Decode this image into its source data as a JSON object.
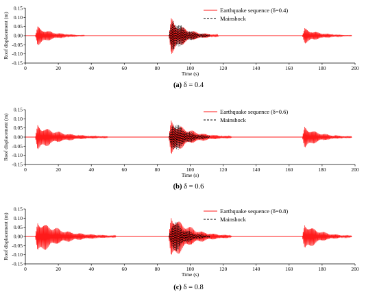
{
  "colors": {
    "sequence": "#ff1a1a",
    "mainshock": "#000000",
    "axis": "#000000"
  },
  "chart_data": [
    {
      "type": "line",
      "caption": {
        "label": "(a)",
        "text": " δ = 0.4"
      },
      "xlabel": "Time (s)",
      "ylabel": "Roof displacement (m)",
      "xlim": [
        0,
        200
      ],
      "ylim": [
        -0.15,
        0.15
      ],
      "x_ticks": [
        "0",
        "20",
        "40",
        "60",
        "80",
        "100",
        "120",
        "140",
        "160",
        "180",
        "200"
      ],
      "y_ticks": [
        "-0.15",
        "-0.10",
        "-0.05",
        "0.00",
        "0.05",
        "0.10",
        "0.15"
      ],
      "legend_position": "top-right",
      "series": [
        {
          "name": "Earthquake sequence (δ=0.4)",
          "style": "solid",
          "color": "#ff1a1a",
          "bursts": [
            {
              "start": 6,
              "end": 36,
              "peak": 0.055
            },
            {
              "start": 87,
              "end": 117,
              "peak": 0.105
            },
            {
              "start": 168,
              "end": 198,
              "peak": 0.045
            }
          ]
        },
        {
          "name": "Mainshock",
          "style": "dashed",
          "color": "#000000",
          "bursts": [
            {
              "start": 87,
              "end": 112,
              "peak": 0.11
            }
          ]
        }
      ]
    },
    {
      "type": "line",
      "caption": {
        "label": "(b)",
        "text": " δ = 0.6"
      },
      "xlabel": "Time (s)",
      "ylabel": "Roof displacement (m)",
      "xlim": [
        0,
        200
      ],
      "ylim": [
        -0.15,
        0.15
      ],
      "x_ticks": [
        "0",
        "20",
        "40",
        "60",
        "80",
        "100",
        "120",
        "140",
        "160",
        "180",
        "200"
      ],
      "y_ticks": [
        "-0.15",
        "-0.10",
        "-0.05",
        "0.00",
        "0.05",
        "0.10",
        "0.15"
      ],
      "legend_position": "top-right",
      "series": [
        {
          "name": "Earthquake sequence (δ=0.6)",
          "style": "solid",
          "color": "#ff1a1a",
          "bursts": [
            {
              "start": 6,
              "end": 50,
              "peak": 0.075
            },
            {
              "start": 87,
              "end": 125,
              "peak": 0.105
            },
            {
              "start": 168,
              "end": 198,
              "peak": 0.065
            }
          ]
        },
        {
          "name": "Mainshock",
          "style": "dashed",
          "color": "#000000",
          "bursts": [
            {
              "start": 87,
              "end": 112,
              "peak": 0.11
            }
          ]
        }
      ]
    },
    {
      "type": "line",
      "caption": {
        "label": "(c)",
        "text": " δ = 0.8"
      },
      "xlabel": "Time (s)",
      "ylabel": "Roof displacement (m)",
      "xlim": [
        0,
        200
      ],
      "ylim": [
        -0.15,
        0.15
      ],
      "x_ticks": [
        "0",
        "20",
        "40",
        "60",
        "80",
        "100",
        "120",
        "140",
        "160",
        "180",
        "200"
      ],
      "y_ticks": [
        "-0.15",
        "-0.10",
        "-0.05",
        "0.00",
        "0.05",
        "0.10",
        "0.15"
      ],
      "legend_position": "top-right",
      "series": [
        {
          "name": "Earthquake sequence (δ=0.8)",
          "style": "solid",
          "color": "#ff1a1a",
          "bursts": [
            {
              "start": 6,
              "end": 55,
              "peak": 0.1
            },
            {
              "start": 87,
              "end": 125,
              "peak": 0.14
            },
            {
              "start": 168,
              "end": 198,
              "peak": 0.085
            }
          ]
        },
        {
          "name": "Mainshock",
          "style": "dashed",
          "color": "#000000",
          "bursts": [
            {
              "start": 87,
              "end": 112,
              "peak": 0.11
            }
          ]
        }
      ]
    }
  ]
}
